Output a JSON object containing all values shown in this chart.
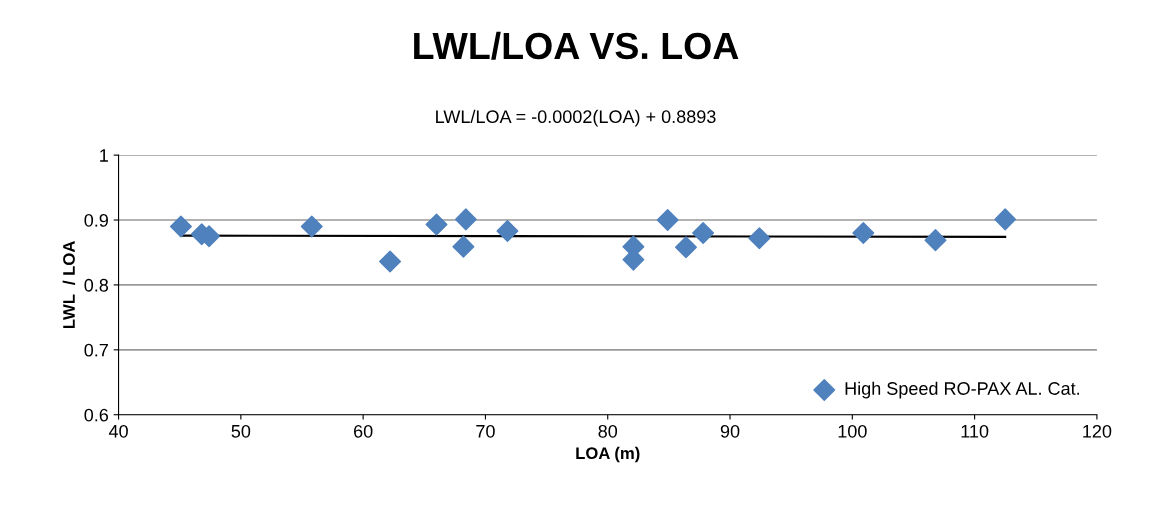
{
  "chart_data": {
    "type": "scatter",
    "title": "LWL/LOA VS. LOA",
    "subtitle": "LWL/LOA = -0.0002(LOA) + 0.8893",
    "xlabel": "LOA (m)",
    "ylabel": "LWL  / LOA",
    "series": [
      {
        "name": "High Speed RO-PAX AL. Cat.",
        "color": "#4f81bd",
        "marker": "diamond",
        "x": [
          45.1,
          46.8,
          47.4,
          55.8,
          62.2,
          66.0,
          68.4,
          68.2,
          71.8,
          82.1,
          82.1,
          84.9,
          86.4,
          87.8,
          92.4,
          100.9,
          106.8,
          112.5
        ],
        "values": [
          0.89,
          0.878,
          0.875,
          0.89,
          0.836,
          0.893,
          0.901,
          0.859,
          0.883,
          0.859,
          0.839,
          0.9,
          0.858,
          0.88,
          0.872,
          0.88,
          0.869,
          0.901
        ]
      },
      {
        "type": "line",
        "color": "#000000",
        "x": [
          45.1,
          112.5
        ],
        "values": [
          0.876,
          0.874
        ]
      }
    ],
    "xlim": [
      40,
      120
    ],
    "xticks": [
      40,
      50,
      60,
      70,
      80,
      90,
      100,
      110,
      120
    ],
    "ylim": [
      0.6,
      1
    ],
    "yticks": [
      0.6,
      0.7,
      0.8,
      0.9,
      1
    ],
    "grid": "y",
    "legend": "bottom right"
  }
}
